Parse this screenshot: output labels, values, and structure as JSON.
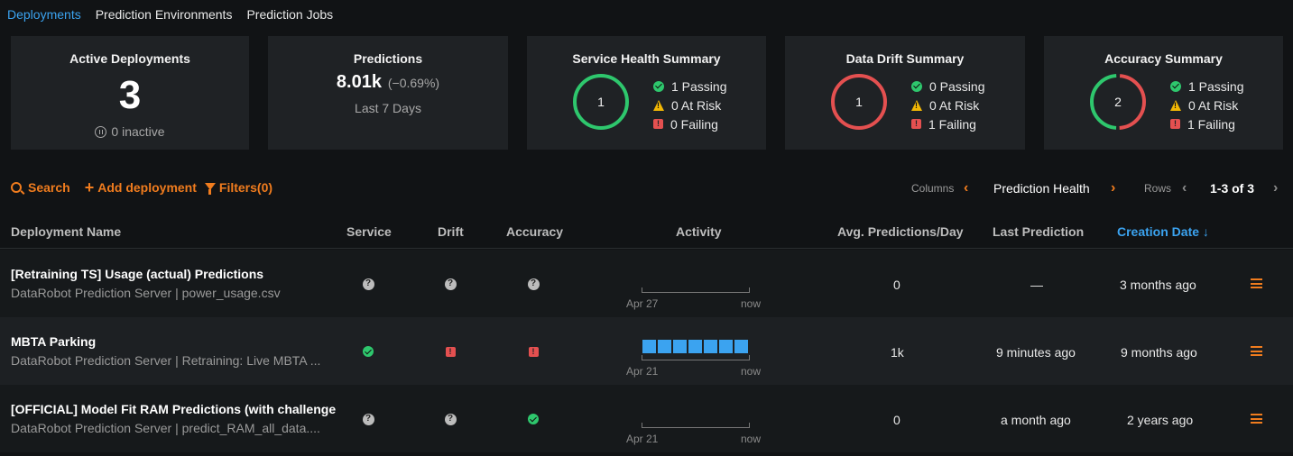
{
  "nav": {
    "tabs": [
      "Deployments",
      "Prediction Environments",
      "Prediction Jobs"
    ]
  },
  "cards": {
    "active": {
      "title": "Active Deployments",
      "value": "3",
      "inactive": "0 inactive"
    },
    "predictions": {
      "title": "Predictions",
      "value": "8.01k",
      "change": "(−0.69%)",
      "period": "Last 7 Days"
    },
    "service": {
      "title": "Service Health Summary",
      "center": "1",
      "passing": "1 Passing",
      "at_risk": "0 At Risk",
      "failing": "0 Failing",
      "ring": {
        "pass": 1,
        "risk": 0,
        "fail": 0
      }
    },
    "drift": {
      "title": "Data Drift Summary",
      "center": "1",
      "passing": "0 Passing",
      "at_risk": "0 At Risk",
      "failing": "1 Failing",
      "ring": {
        "pass": 0,
        "risk": 0,
        "fail": 1
      }
    },
    "accuracy": {
      "title": "Accuracy Summary",
      "center": "2",
      "passing": "1 Passing",
      "at_risk": "0 At Risk",
      "failing": "1 Failing",
      "ring": {
        "pass": 1,
        "risk": 0,
        "fail": 1
      }
    }
  },
  "toolbar": {
    "search": "Search",
    "add": "Add deployment",
    "filters": "Filters(0)"
  },
  "pager": {
    "columns_label": "Columns",
    "columns_value": "Prediction Health",
    "rows_label": "Rows",
    "rows_value": "1-3 of 3"
  },
  "table": {
    "headers": {
      "name": "Deployment Name",
      "service": "Service",
      "drift": "Drift",
      "accuracy": "Accuracy",
      "activity": "Activity",
      "avg": "Avg. Predictions/Day",
      "last": "Last Prediction",
      "created": "Creation Date ↓"
    },
    "rows": [
      {
        "name": "[Retraining TS] Usage (actual) Predictions",
        "sub": "DataRobot Prediction Server | power_usage.csv",
        "service": "unknown",
        "drift": "unknown",
        "accuracy": "unknown",
        "act_start": "Apr 27",
        "act_end": "now",
        "act_bars": 0,
        "avg": "0",
        "last": "—",
        "created": "3 months ago"
      },
      {
        "name": "MBTA Parking",
        "sub": "DataRobot Prediction Server | Retraining: Live MBTA ...",
        "service": "passing",
        "drift": "failing",
        "accuracy": "failing",
        "act_start": "Apr 21",
        "act_end": "now",
        "act_bars": 7,
        "avg": "1k",
        "last": "9 minutes ago",
        "created": "9 months ago"
      },
      {
        "name": "[OFFICIAL] Model Fit RAM Predictions (with challenge",
        "sub": "DataRobot Prediction Server | predict_RAM_all_data....",
        "service": "unknown",
        "drift": "unknown",
        "accuracy": "passing",
        "act_start": "Apr 21",
        "act_end": "now",
        "act_bars": 0,
        "avg": "0",
        "last": "a month ago",
        "created": "2 years ago"
      }
    ]
  },
  "colors": {
    "accent": "#f07c1e",
    "link": "#3ba3f0",
    "pass": "#2ec76d",
    "warn": "#f2b705",
    "fail": "#e45050"
  }
}
